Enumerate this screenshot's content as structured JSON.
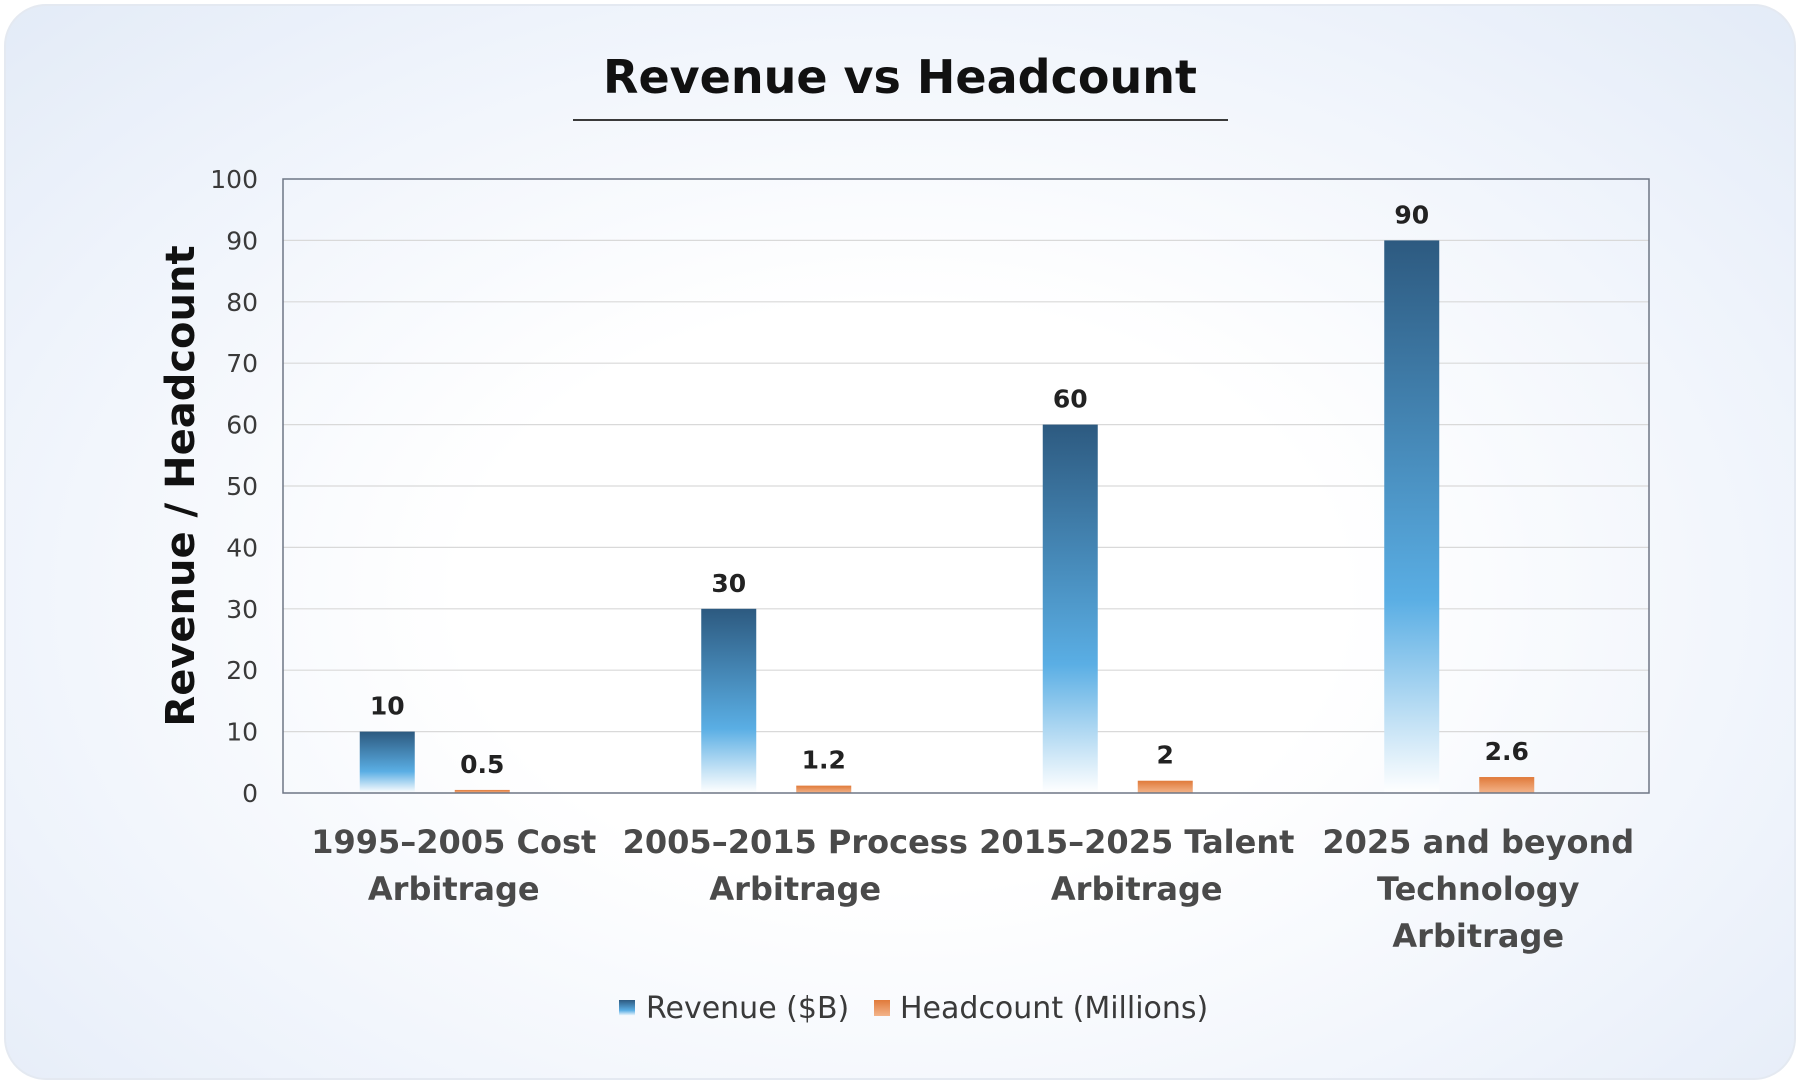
{
  "chart_data": {
    "type": "bar",
    "title": "Revenue vs Headcount",
    "xlabel": "",
    "ylabel": "Revenue / Headcount",
    "ylim": [
      0,
      100
    ],
    "yticks": [
      0,
      10,
      20,
      30,
      40,
      50,
      60,
      70,
      80,
      90,
      100
    ],
    "grid": true,
    "legend_position": "bottom-center",
    "categories": [
      [
        "1995–2005 Cost",
        "Arbitrage"
      ],
      [
        "2005–2015 Process",
        "Arbitrage"
      ],
      [
        "2015–2025 Talent",
        "Arbitrage"
      ],
      [
        "2025 and beyond",
        "Technology",
        "Arbitrage"
      ]
    ],
    "series": [
      {
        "name": "Revenue ($B)",
        "values": [
          10,
          30,
          60,
          90
        ],
        "labels": [
          "10",
          "30",
          "60",
          "90"
        ],
        "color": "#2d5a80",
        "color_mid": "#5aaee4",
        "color_end": "#ffffff"
      },
      {
        "name": "Headcount (Millions)",
        "values": [
          0.5,
          1.2,
          2,
          2.6
        ],
        "labels": [
          "0.5",
          "1.2",
          "2",
          "2.6"
        ],
        "color": "#e07a3a",
        "color_end": "#f3b48a"
      }
    ]
  },
  "colors": {
    "text_dark": "#111111",
    "text_axis": "#3a3a3a",
    "text_category": "#4a4a4a",
    "grid": "#d9d9d9",
    "frame": "#6e7685"
  }
}
